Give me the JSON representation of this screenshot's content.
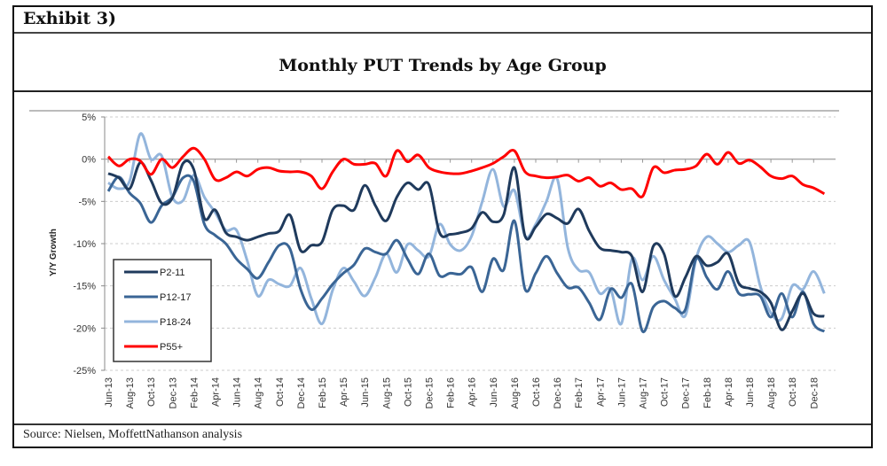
{
  "header": {
    "exhibit": "Exhibit 3)"
  },
  "footer": {
    "source": "Source: Nielsen, MoffettNathanson analysis"
  },
  "chart_data": {
    "type": "line",
    "title": "Monthly PUT Trends by Age Group",
    "ylabel": "Y/Y Growth",
    "xlabel": "",
    "ylim": [
      -25,
      5
    ],
    "yticks": [
      "5%",
      "0%",
      "-5%",
      "-10%",
      "-15%",
      "-20%",
      "-25%"
    ],
    "ytick_values": [
      5,
      0,
      -5,
      -10,
      -15,
      -20,
      -25
    ],
    "x_start": "Jun-13",
    "x_end": "Jan-19",
    "x_frequency": "monthly",
    "xtick_labels": [
      "Jun-13",
      "Aug-13",
      "Oct-13",
      "Dec-13",
      "Feb-14",
      "Apr-14",
      "Jun-14",
      "Aug-14",
      "Oct-14",
      "Dec-14",
      "Feb-15",
      "Apr-15",
      "Jun-15",
      "Aug-15",
      "Oct-15",
      "Dec-15",
      "Feb-16",
      "Apr-16",
      "Jun-16",
      "Aug-16",
      "Oct-16",
      "Dec-16",
      "Feb-17",
      "Apr-17",
      "Jun-17",
      "Aug-17",
      "Oct-17",
      "Dec-17",
      "Feb-18",
      "Apr-18",
      "Jun-18",
      "Aug-18",
      "Oct-18",
      "Dec-18"
    ],
    "grid": "horizontal dashed",
    "legend_position": "bottom-left",
    "series": [
      {
        "name": "P2-11",
        "color": "#1f3a5c",
        "values": [
          -1.7,
          -2.2,
          -3.5,
          -0.4,
          -2.5,
          -5.2,
          -4.6,
          -0.5,
          -1.2,
          -7.0,
          -6.0,
          -8.7,
          -9.2,
          -9.6,
          -9.2,
          -8.8,
          -8.5,
          -6.6,
          -10.8,
          -10.2,
          -9.8,
          -6.0,
          -5.5,
          -6.0,
          -3.1,
          -5.5,
          -7.3,
          -4.5,
          -2.8,
          -3.6,
          -3.0,
          -8.7,
          -8.9,
          -8.7,
          -8.2,
          -6.3,
          -7.4,
          -6.6,
          -1.0,
          -9.1,
          -8.0,
          -6.5,
          -7.0,
          -7.6,
          -5.9,
          -8.5,
          -10.5,
          -10.8,
          -11.0,
          -11.5,
          -15.7,
          -10.3,
          -11.2,
          -16.2,
          -14.0,
          -11.5,
          -12.6,
          -12.2,
          -11.2,
          -14.7,
          -15.3,
          -15.7,
          -17.0,
          -20.2,
          -18.0,
          -15.9,
          -18.3,
          -18.6
        ]
      },
      {
        "name": "P12-17",
        "color": "#3a6595",
        "values": [
          -3.8,
          -2.1,
          -4.0,
          -5.2,
          -7.5,
          -5.5,
          -4.5,
          -2.2,
          -2.6,
          -7.7,
          -9.0,
          -10.0,
          -11.8,
          -13.0,
          -14.1,
          -12.2,
          -10.2,
          -10.6,
          -15.4,
          -17.8,
          -16.5,
          -14.8,
          -13.5,
          -12.5,
          -10.6,
          -11.0,
          -11.2,
          -9.6,
          -11.8,
          -13.6,
          -11.2,
          -13.8,
          -13.5,
          -13.6,
          -12.8,
          -15.7,
          -11.8,
          -13.1,
          -7.3,
          -15.4,
          -13.5,
          -11.5,
          -13.5,
          -15.2,
          -15.2,
          -17.0,
          -19.0,
          -15.4,
          -16.4,
          -14.8,
          -20.4,
          -17.5,
          -16.8,
          -17.6,
          -17.8,
          -11.8,
          -14.0,
          -15.4,
          -13.3,
          -15.9,
          -16.0,
          -16.2,
          -18.7,
          -15.9,
          -18.7,
          -15.7,
          -19.5,
          -20.4
        ]
      },
      {
        "name": "P18-24",
        "color": "#93b5dc",
        "values": [
          -2.8,
          -3.5,
          -2.6,
          3.0,
          0.0,
          0.4,
          -4.5,
          -4.9,
          -1.9,
          -4.5,
          -6.3,
          -8.4,
          -8.4,
          -12.0,
          -16.2,
          -14.3,
          -14.8,
          -15.0,
          -12.9,
          -16.5,
          -19.5,
          -15.5,
          -12.9,
          -14.5,
          -16.2,
          -14.0,
          -11.2,
          -13.4,
          -10.1,
          -10.8,
          -11.5,
          -7.7,
          -10.1,
          -10.8,
          -9.1,
          -5.0,
          -1.2,
          -5.6,
          -3.7,
          -9.1,
          -7.7,
          -5.0,
          -2.3,
          -10.5,
          -13.1,
          -13.4,
          -15.9,
          -15.4,
          -19.5,
          -11.8,
          -14.3,
          -11.5,
          -14.3,
          -16.5,
          -18.5,
          -11.8,
          -9.2,
          -10.0,
          -11.0,
          -10.2,
          -9.8,
          -15.0,
          -18.2,
          -18.9,
          -15.0,
          -15.4,
          -13.3,
          -15.9
        ]
      },
      {
        "name": "P55+",
        "color": "#ff0000",
        "values": [
          0.3,
          -0.8,
          0.0,
          -0.2,
          -1.8,
          0.0,
          -1.0,
          0.3,
          1.3,
          0.0,
          -2.4,
          -2.2,
          -1.5,
          -2.0,
          -1.2,
          -1.0,
          -1.4,
          -1.5,
          -1.5,
          -2.0,
          -3.5,
          -1.5,
          0.0,
          -0.6,
          -0.6,
          -0.5,
          -2.0,
          1.0,
          -0.3,
          0.5,
          -1.0,
          -1.5,
          -1.7,
          -1.7,
          -1.4,
          -1.0,
          -0.5,
          0.3,
          1.0,
          -1.5,
          -2.0,
          -2.2,
          -2.1,
          -1.9,
          -2.6,
          -2.2,
          -3.2,
          -2.8,
          -3.6,
          -3.5,
          -4.4,
          -1.0,
          -1.6,
          -1.3,
          -1.2,
          -0.8,
          0.6,
          -0.6,
          0.8,
          -0.5,
          -0.1,
          -0.9,
          -2.0,
          -2.3,
          -2.0,
          -3.0,
          -3.4,
          -4.1
        ]
      }
    ]
  }
}
